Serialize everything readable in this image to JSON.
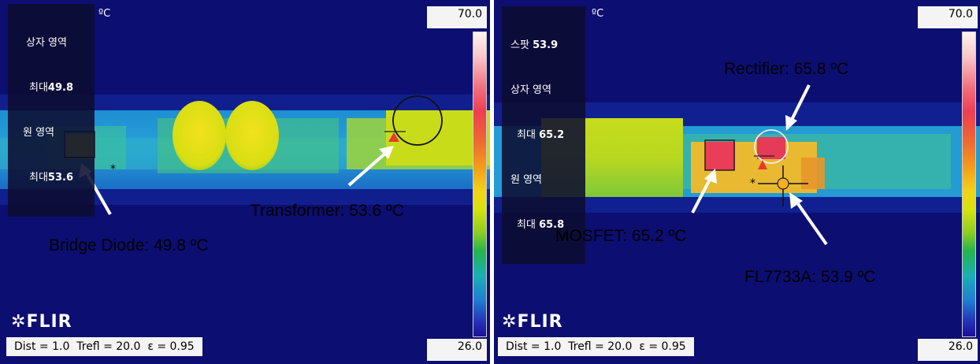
{
  "left_image": {
    "readout_lines": [
      {
        "label": "상자 영역",
        "value": ""
      },
      {
        "label": "최대",
        "value": "49.8"
      },
      {
        "label": "원 영역",
        "value": ""
      },
      {
        "label": "최대",
        "value": "53.6"
      }
    ],
    "unit": "ºC",
    "scale_max": "70.0",
    "scale_min": "26.0",
    "logo": "FLIR",
    "footer": "Dist = 1.0  Trefl = 20.0  ε = 0.95",
    "annotations": {
      "bridge_diode": "Bridge Diode: 49.8 ºC",
      "transformer": "Transformer: 53.6 ºC"
    }
  },
  "right_image": {
    "readout_lines": [
      {
        "label": "스팟",
        "value": "53.9"
      },
      {
        "label": "상자 영역",
        "value": ""
      },
      {
        "label": "최대",
        "value": "65.2"
      },
      {
        "label": "원 영역",
        "value": ""
      },
      {
        "label": "최대",
        "value": "65.8"
      }
    ],
    "unit": "ºC",
    "scale_max": "70.0",
    "scale_min": "26.0",
    "logo": "FLIR",
    "footer": "Dist = 1.0  Trefl = 20.0  ε = 0.95",
    "annotations": {
      "rectifier": "Rectifier: 65.8 ºC",
      "mosfet": "MOSFET: 65.2 ºC",
      "fl7733a": "FL7733A: 53.9 ºC"
    }
  }
}
